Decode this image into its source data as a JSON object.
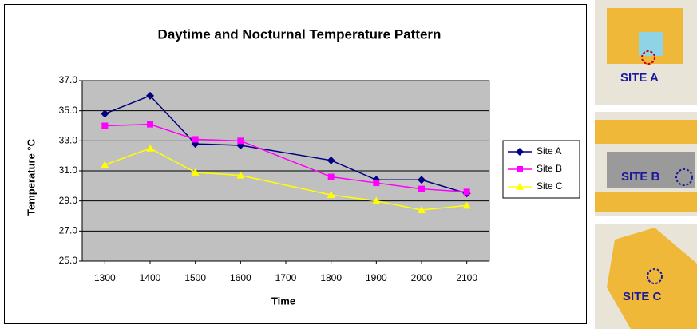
{
  "chart_data": {
    "type": "line",
    "title": "Daytime  and  Nocturnal Temperature Pattern",
    "x_label": "Time",
    "y_label": "Temperature °C",
    "x": [
      1300,
      1400,
      1500,
      1600,
      1800,
      1900,
      2000,
      2100
    ],
    "xlim": [
      1250,
      2150
    ],
    "xticks": [
      1300,
      1400,
      1500,
      1600,
      1700,
      1800,
      1900,
      2000,
      2100
    ],
    "ylim": [
      25,
      37
    ],
    "yticks": [
      {
        "value": 25,
        "label": "25.0"
      },
      {
        "value": 27,
        "label": "27.0"
      },
      {
        "value": 29,
        "label": "29.0"
      },
      {
        "value": 31,
        "label": "31.0"
      },
      {
        "value": 33,
        "label": "33.0"
      },
      {
        "value": 35,
        "label": "35.0"
      },
      {
        "value": 37,
        "label": "37.0"
      }
    ],
    "grid": true,
    "legend": "right",
    "series": [
      {
        "name": "Site A",
        "color": "#000080",
        "marker": "diamond",
        "values": [
          34.8,
          36.0,
          32.8,
          32.7,
          31.7,
          30.4,
          30.4,
          29.5
        ]
      },
      {
        "name": "Site B",
        "color": "#ff00ff",
        "marker": "square",
        "values": [
          34.0,
          34.1,
          33.1,
          33.0,
          30.6,
          30.2,
          29.8,
          29.6
        ]
      },
      {
        "name": "Site C",
        "color": "#ffff00",
        "marker": "triangle",
        "values": [
          31.4,
          32.5,
          30.9,
          30.7,
          29.4,
          29.0,
          28.4,
          28.7
        ]
      }
    ]
  },
  "maps": [
    "SITE A",
    "SITE B",
    "SITE C"
  ]
}
